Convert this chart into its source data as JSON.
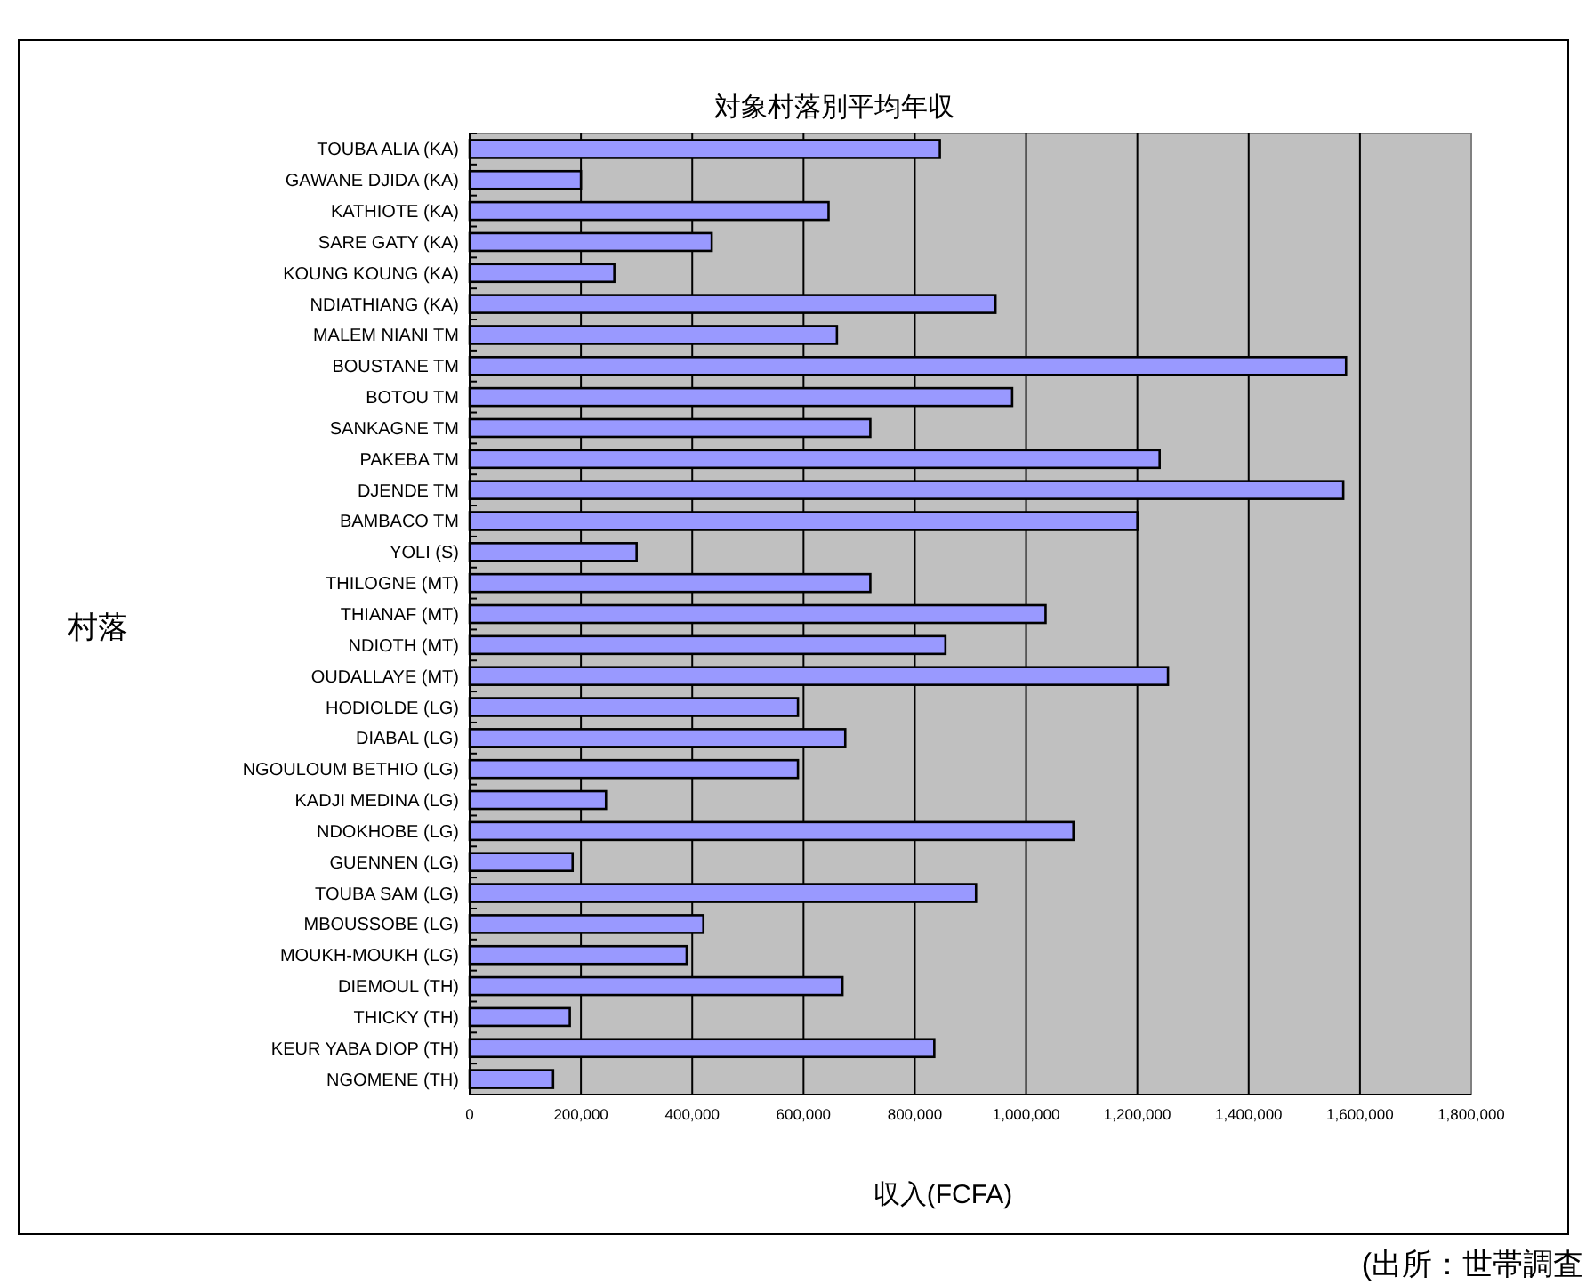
{
  "chart_data": {
    "type": "bar",
    "orientation": "horizontal",
    "title": "対象村落別平均年収",
    "xlabel": "収入(FCFA)",
    "ylabel": "村落",
    "annotations": [
      "(出所：世帯調査"
    ],
    "categories": [
      "TOUBA ALIA (KA)",
      "GAWANE DJIDA (KA)",
      "KATHIOTE (KA)",
      "SARE GATY (KA)",
      "KOUNG KOUNG (KA)",
      "NDIATHIANG (KA)",
      "MALEM NIANI TM",
      "BOUSTANE TM",
      "BOTOU TM",
      "SANKAGNE TM",
      "PAKEBA TM",
      "DJENDE TM",
      "BAMBACO TM",
      "YOLI (S)",
      "THILOGNE (MT)",
      "THIANAF (MT)",
      "NDIOTH (MT)",
      "OUDALLAYE (MT)",
      "HODIOLDE (LG)",
      "DIABAL (LG)",
      "NGOULOUM BETHIO (LG)",
      "KADJI MEDINA (LG)",
      "NDOKHOBE (LG)",
      "GUENNEN (LG)",
      "TOUBA SAM (LG)",
      "MBOUSSOBE (LG)",
      "MOUKH-MOUKH (LG)",
      "DIEMOUL (TH)",
      "THICKY (TH)",
      "KEUR YABA DIOP (TH)",
      "NGOMENE (TH)"
    ],
    "values": [
      845000,
      200000,
      645000,
      435000,
      260000,
      945000,
      660000,
      1575000,
      975000,
      720000,
      1240000,
      1570000,
      1200000,
      300000,
      720000,
      1035000,
      855000,
      1255000,
      590000,
      675000,
      590000,
      245000,
      1085000,
      185000,
      910000,
      420000,
      390000,
      670000,
      180000,
      835000,
      150000
    ],
    "color": "#9999ff",
    "grid": "x",
    "xlim": [
      0,
      1800000
    ],
    "xticks": [
      0,
      {
        "value": 200000,
        "label": "200,000"
      },
      {
        "value": 400000,
        "label": "400,000"
      },
      {
        "value": 600000,
        "label": "600,000"
      },
      {
        "value": 800000,
        "label": "800,000"
      },
      {
        "value": 1000000,
        "label": "1,000,000"
      },
      {
        "value": 1200000,
        "label": "1,200,000"
      },
      {
        "value": 1400000,
        "label": "1,400,000"
      },
      {
        "value": 1600000,
        "label": "1,600,000"
      },
      {
        "value": 1800000,
        "label": "1,800,000"
      }
    ]
  }
}
